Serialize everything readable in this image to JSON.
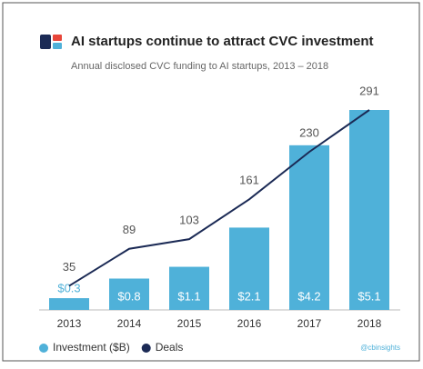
{
  "chart_data": {
    "type": "bar-line",
    "title": "AI startups continue to attract CVC investment",
    "subtitle": "Annual disclosed CVC funding to AI startups,  2013 – 2018",
    "categories": [
      "2013",
      "2014",
      "2015",
      "2016",
      "2017",
      "2018"
    ],
    "series": [
      {
        "name": "Investment ($B)",
        "type": "bar",
        "color": "#4fb1d9",
        "values": [
          0.3,
          0.8,
          1.1,
          2.1,
          4.2,
          5.1
        ],
        "value_labels": [
          "$0.3",
          "$0.8",
          "$1.1",
          "$2.1",
          "$4.2",
          "$5.1"
        ]
      },
      {
        "name": "Deals",
        "type": "line",
        "axis": "y2",
        "color": "#1b2a55",
        "values": [
          35,
          89,
          103,
          161,
          230,
          291
        ]
      }
    ],
    "source": "@cbinsights"
  }
}
